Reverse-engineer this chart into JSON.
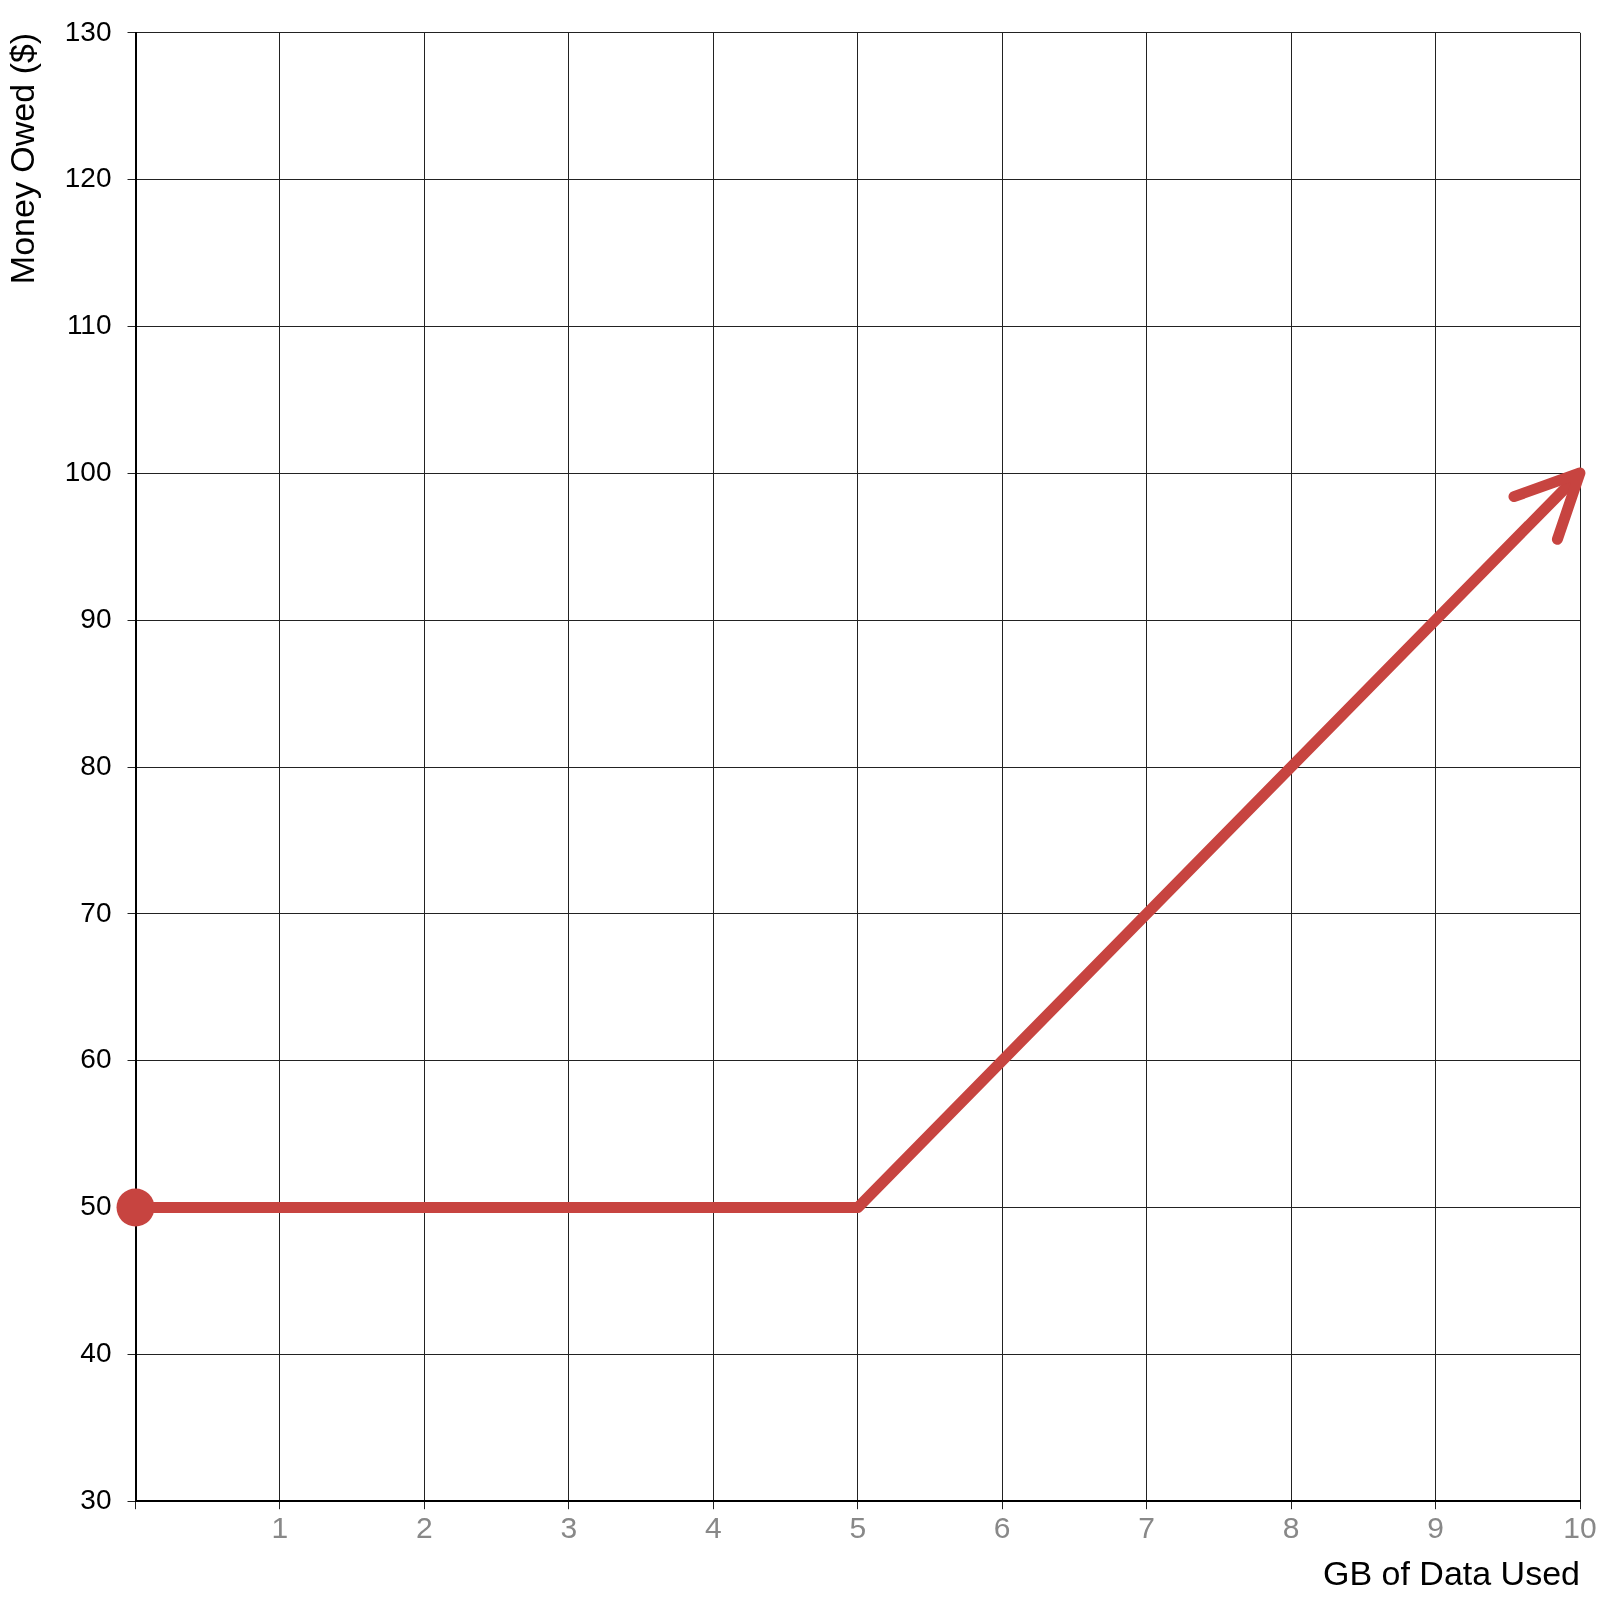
{
  "chart_data": {
    "type": "line",
    "xlabel": "GB of Data Used",
    "ylabel": "Money Owed ($)",
    "xlim": [
      0,
      10
    ],
    "ylim": [
      30,
      130
    ],
    "xticks": [
      {
        "value": 0,
        "label": null
      },
      1,
      2,
      3,
      4,
      5,
      6,
      7,
      8,
      9,
      10
    ],
    "yticks": [
      30,
      40,
      50,
      60,
      70,
      80,
      90,
      100,
      110,
      120,
      130
    ],
    "grid": true,
    "series": [
      {
        "color": "#c74440",
        "x": [
          0,
          5,
          10
        ],
        "values": [
          50,
          50,
          100
        ],
        "marker": "none",
        "line_style": "solid"
      },
      {
        "type": "scatter",
        "color": "#c74440",
        "x": [
          0
        ],
        "values": [
          50
        ],
        "marker": "circle"
      }
    ]
  }
}
